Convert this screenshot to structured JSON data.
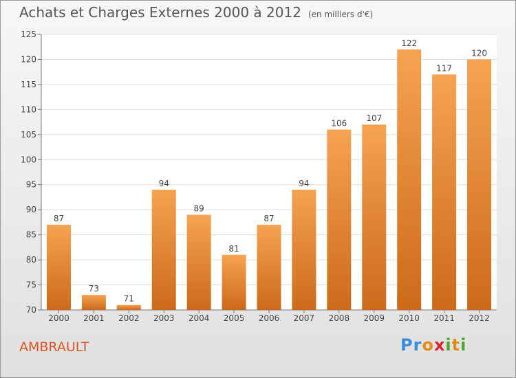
{
  "title": "Achats et Charges Externes 2000 à 2012",
  "unit": "(en milliers d'€)",
  "place": "AMBRAULT",
  "logo": {
    "letters": [
      {
        "ch": "P",
        "color": "#3a8bd8"
      },
      {
        "ch": "r",
        "color": "#3a8bd8"
      },
      {
        "ch": "o",
        "color": "#e68a1a"
      },
      {
        "ch": "x",
        "color": "#d8262b"
      },
      {
        "ch": "i",
        "color": "#4aa52e"
      },
      {
        "ch": "t",
        "color": "#e68a1a"
      },
      {
        "ch": "i",
        "color": "#4aa52e"
      }
    ]
  },
  "chart_data": {
    "type": "bar",
    "categories": [
      "2000",
      "2001",
      "2002",
      "2003",
      "2004",
      "2005",
      "2006",
      "2007",
      "2008",
      "2009",
      "2010",
      "2011",
      "2012"
    ],
    "values": [
      87,
      73,
      71,
      94,
      89,
      81,
      87,
      94,
      106,
      107,
      122,
      117,
      120
    ],
    "ylim": [
      70,
      125
    ],
    "yticks": [
      70,
      75,
      80,
      85,
      90,
      95,
      100,
      105,
      110,
      115,
      120,
      125
    ],
    "grid": true,
    "bar_color_top": "#f5a352",
    "bar_color_bottom": "#cc6a1a"
  }
}
